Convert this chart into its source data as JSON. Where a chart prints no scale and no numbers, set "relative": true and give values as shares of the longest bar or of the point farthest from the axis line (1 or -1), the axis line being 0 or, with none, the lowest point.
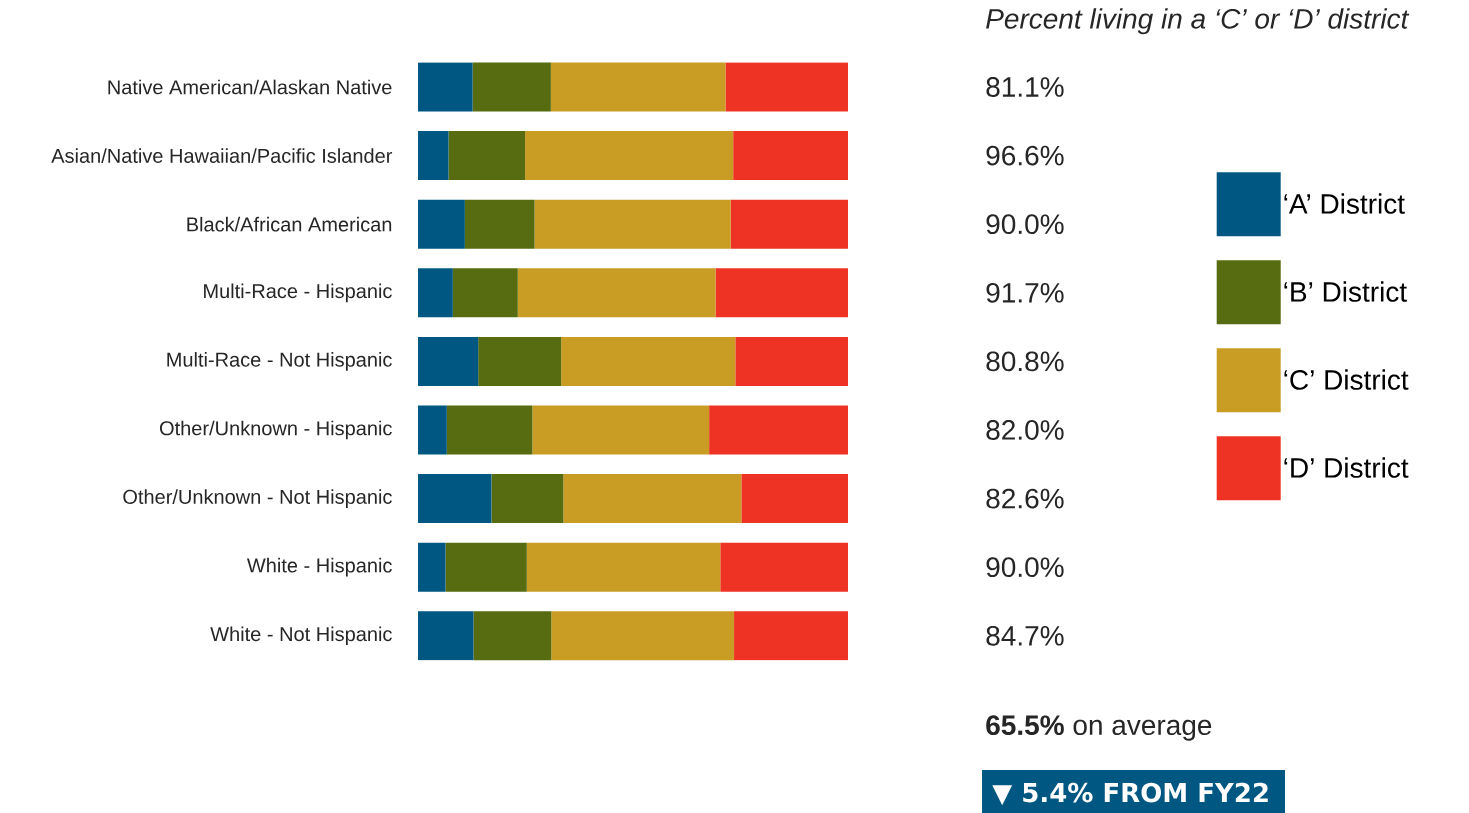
{
  "chart_data": {
    "type": "bar",
    "orientation": "horizontal",
    "stacked": true,
    "relative": true,
    "categories": [
      "Native American/Alaskan Native",
      "Asian/Native Hawaiian/Pacific Islander",
      "Black/African American",
      "Multi-Race - Hispanic",
      "Multi-Race - Not Hispanic",
      "Other/Unknown - Hispanic",
      "Other/Unknown - Not Hispanic",
      "White - Hispanic",
      "White - Not Hispanic"
    ],
    "series": [
      {
        "name": "‘A’ District",
        "color": "#005882",
        "values": [
          0.127,
          0.071,
          0.109,
          0.081,
          0.14,
          0.067,
          0.171,
          0.064,
          0.129
        ]
      },
      {
        "name": "‘B’ District",
        "color": "#576c10",
        "values": [
          0.182,
          0.178,
          0.162,
          0.151,
          0.193,
          0.199,
          0.167,
          0.189,
          0.181
        ]
      },
      {
        "name": "‘C’ District",
        "color": "#c99c24",
        "values": [
          0.406,
          0.484,
          0.456,
          0.46,
          0.405,
          0.411,
          0.414,
          0.45,
          0.425
        ]
      },
      {
        "name": "‘D’ District",
        "color": "#ee3224",
        "values": [
          0.285,
          0.267,
          0.273,
          0.308,
          0.262,
          0.323,
          0.248,
          0.297,
          0.265
        ]
      }
    ],
    "legend": "right",
    "annotations": [
      "Percent living in a ‘C’ or ‘D’ district",
      "81.1%",
      "96.6%",
      "90.0%",
      "91.7%",
      "80.8%",
      "82.0%",
      "82.6%",
      "90.0%",
      "84.7%",
      "**65.5%** on average",
      "▼ 5.4% FROM FY22"
    ]
  }
}
